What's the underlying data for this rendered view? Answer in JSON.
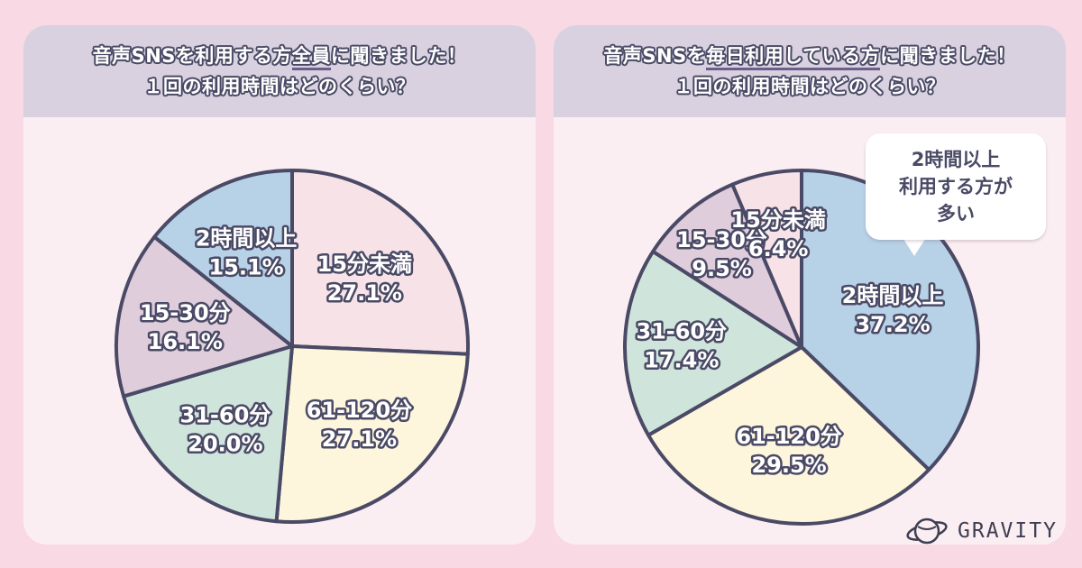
{
  "panels": [
    {
      "header_line1_pre": "音声SNSを利用する方",
      "header_line1_emph": "全員",
      "header_line1_post": "に聞きました！",
      "header_line2": "１回の利用時間はどのくらい？"
    },
    {
      "header_line1_pre": "音声SNSを",
      "header_line1_emph": "毎日利用している方",
      "header_line1_post": "に聞きました！",
      "header_line2": "１回の利用時間はどのくらい？"
    }
  ],
  "callout": {
    "line1": "2時間以上",
    "line2": "利用する方が",
    "line3": "多い"
  },
  "logo": {
    "text": "GRAVITY",
    "icon": "planet-icon"
  },
  "colors": {
    "15分未満": "#f7e3e7",
    "61-120分": "#fdf6dc",
    "31-60分": "#cfe5dc",
    "15-30分": "#e0cddc",
    "2時間以上": "#b7d1e6",
    "outline": "#4a4a66"
  },
  "chart_data": [
    {
      "type": "pie",
      "title": "音声SNSを利用する方全員に聞きました！ １回の利用時間はどのくらい？",
      "categories": [
        "15分未満",
        "61-120分",
        "31-60分",
        "15-30分",
        "2時間以上"
      ],
      "values": [
        27.1,
        27.1,
        20.0,
        16.1,
        15.1
      ],
      "labels": [
        "27.1%",
        "27.1%",
        "20.0%",
        "16.1%",
        "15.1%"
      ],
      "start": "12 o'clock",
      "direction": "clockwise"
    },
    {
      "type": "pie",
      "title": "音声SNSを毎日利用している方に聞きました！ １回の利用時間はどのくらい？",
      "categories": [
        "2時間以上",
        "61-120分",
        "31-60分",
        "15-30分",
        "15分未満"
      ],
      "values": [
        37.2,
        29.5,
        17.4,
        9.5,
        6.4
      ],
      "labels": [
        "37.2%",
        "29.5%",
        "17.4%",
        "9.5%",
        "6.4%"
      ],
      "start": "12 o'clock",
      "direction": "clockwise"
    }
  ]
}
